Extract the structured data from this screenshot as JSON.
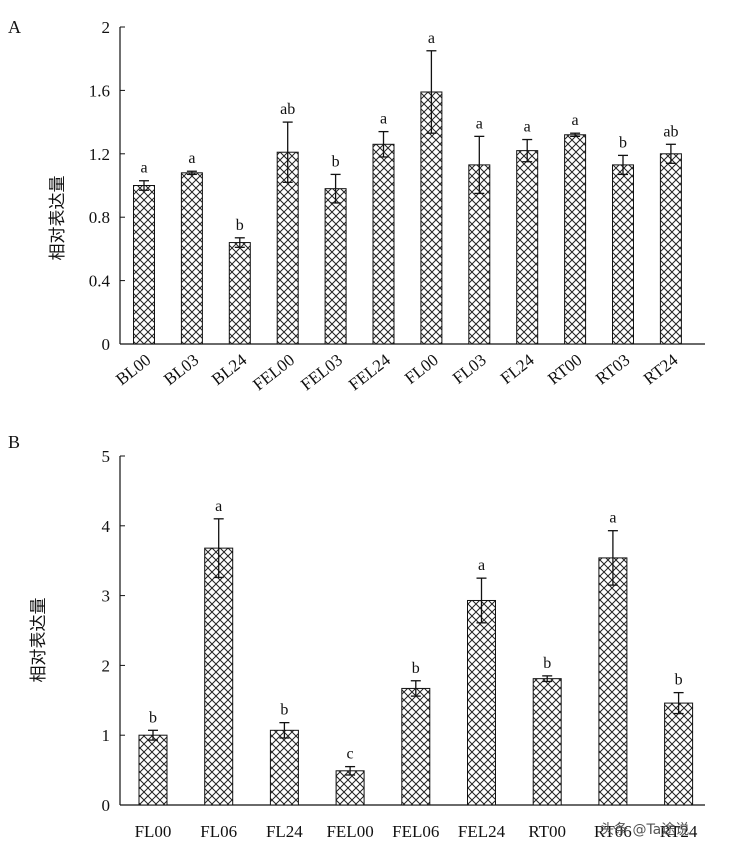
{
  "watermark": "头条 @Ta途说",
  "chart_data": [
    {
      "type": "bar",
      "panel": "A",
      "ylabel": "相对表达量",
      "ylim": [
        0,
        2
      ],
      "yticks": [
        "0",
        "0.4",
        "0.8",
        "1.2",
        "1.6",
        "2"
      ],
      "categories": [
        "BL00",
        "BL03",
        "BL24",
        "FEL00",
        "FEL03",
        "FEL24",
        "FL00",
        "FL03",
        "FL24",
        "RT00",
        "RT03",
        "RT24"
      ],
      "values": [
        1.0,
        1.08,
        0.64,
        1.21,
        0.98,
        1.26,
        1.59,
        1.13,
        1.22,
        1.32,
        1.13,
        1.2
      ],
      "errors": [
        0.03,
        0.01,
        0.03,
        0.19,
        0.09,
        0.08,
        0.26,
        0.18,
        0.07,
        0.01,
        0.06,
        0.06
      ],
      "significance": [
        "a",
        "a",
        "b",
        "ab",
        "b",
        "a",
        "a",
        "a",
        "a",
        "a",
        "b",
        "ab"
      ]
    },
    {
      "type": "bar",
      "panel": "B",
      "ylabel": "相对表达量",
      "ylim": [
        0,
        5
      ],
      "yticks": [
        "0",
        "1",
        "2",
        "3",
        "4",
        "5"
      ],
      "categories": [
        "FL00",
        "FL06",
        "FL24",
        "FEL00",
        "FEL06",
        "FEL24",
        "RT00",
        "RT06",
        "RT24"
      ],
      "values": [
        1.0,
        3.68,
        1.07,
        0.49,
        1.67,
        2.93,
        1.81,
        3.54,
        1.46
      ],
      "errors": [
        0.07,
        0.42,
        0.11,
        0.06,
        0.11,
        0.32,
        0.04,
        0.39,
        0.15
      ],
      "significance": [
        "b",
        "a",
        "b",
        "c",
        "b",
        "a",
        "b",
        "a",
        "b"
      ]
    }
  ]
}
